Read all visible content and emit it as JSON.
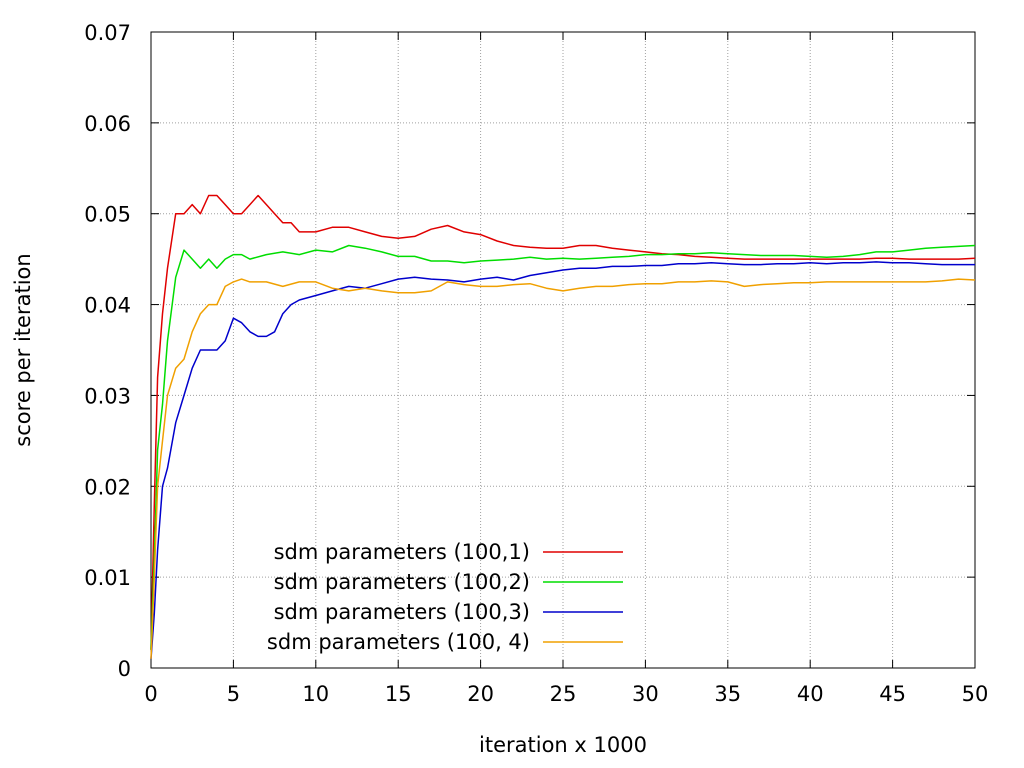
{
  "chart_data": {
    "type": "line",
    "title": "",
    "xlabel": "iteration x 1000",
    "ylabel": "score per iteration",
    "xlim": [
      0,
      50
    ],
    "ylim": [
      0,
      0.07
    ],
    "x_ticks": [
      "0",
      "5",
      "10",
      "15",
      "20",
      "25",
      "30",
      "35",
      "40",
      "45",
      "50"
    ],
    "y_ticks": [
      "0",
      "0.01",
      "0.02",
      "0.03",
      "0.04",
      "0.05",
      "0.06",
      "0.07"
    ],
    "grid": true,
    "legend_position": "bottom-left",
    "series": [
      {
        "name": "sdm parameters (100,1)",
        "color": "#e00000",
        "x": [
          0,
          0.2,
          0.4,
          0.7,
          1,
          1.5,
          2,
          2.5,
          3,
          3.5,
          4,
          4.5,
          5,
          5.5,
          6,
          6.5,
          7,
          7.5,
          8,
          8.5,
          9,
          10,
          11,
          12,
          13,
          14,
          15,
          16,
          17,
          18,
          19,
          20,
          21,
          22,
          23,
          24,
          25,
          26,
          27,
          28,
          29,
          30,
          31,
          32,
          33,
          34,
          35,
          36,
          37,
          38,
          39,
          40,
          41,
          42,
          43,
          44,
          45,
          46,
          47,
          48,
          49,
          50
        ],
        "y": [
          0.002,
          0.018,
          0.032,
          0.039,
          0.044,
          0.05,
          0.05,
          0.051,
          0.05,
          0.052,
          0.052,
          0.051,
          0.05,
          0.05,
          0.051,
          0.052,
          0.051,
          0.05,
          0.049,
          0.049,
          0.048,
          0.048,
          0.0485,
          0.0485,
          0.048,
          0.0475,
          0.0473,
          0.0475,
          0.0483,
          0.0487,
          0.048,
          0.0477,
          0.047,
          0.0465,
          0.0463,
          0.0462,
          0.0462,
          0.0465,
          0.0465,
          0.0462,
          0.046,
          0.0458,
          0.0456,
          0.0455,
          0.0453,
          0.0452,
          0.0451,
          0.045,
          0.045,
          0.045,
          0.045,
          0.045,
          0.045,
          0.045,
          0.045,
          0.0451,
          0.0451,
          0.045,
          0.045,
          0.045,
          0.045,
          0.0451
        ]
      },
      {
        "name": "sdm parameters (100,2)",
        "color": "#00dd00",
        "x": [
          0,
          0.2,
          0.4,
          0.7,
          1,
          1.5,
          2,
          2.5,
          3,
          3.5,
          4,
          4.5,
          5,
          5.5,
          6,
          7,
          8,
          9,
          10,
          11,
          12,
          13,
          14,
          15,
          16,
          17,
          18,
          19,
          20,
          21,
          22,
          23,
          24,
          25,
          26,
          27,
          28,
          29,
          30,
          31,
          32,
          33,
          34,
          35,
          36,
          37,
          38,
          39,
          40,
          41,
          42,
          43,
          44,
          45,
          46,
          47,
          48,
          49,
          50
        ],
        "y": [
          0.002,
          0.012,
          0.024,
          0.029,
          0.036,
          0.043,
          0.046,
          0.045,
          0.044,
          0.045,
          0.044,
          0.045,
          0.0455,
          0.0455,
          0.045,
          0.0455,
          0.0458,
          0.0455,
          0.046,
          0.0458,
          0.0465,
          0.0462,
          0.0458,
          0.0453,
          0.0453,
          0.0448,
          0.0448,
          0.0446,
          0.0448,
          0.0449,
          0.045,
          0.0452,
          0.045,
          0.0451,
          0.045,
          0.0451,
          0.0452,
          0.0453,
          0.0455,
          0.0455,
          0.0456,
          0.0456,
          0.0457,
          0.0456,
          0.0455,
          0.0454,
          0.0454,
          0.0454,
          0.0453,
          0.0452,
          0.0453,
          0.0455,
          0.0458,
          0.0458,
          0.046,
          0.0462,
          0.0463,
          0.0464,
          0.0465
        ]
      },
      {
        "name": "sdm parameters (100,3)",
        "color": "#0000cc",
        "x": [
          0,
          0.2,
          0.4,
          0.7,
          1,
          1.5,
          2,
          2.5,
          3,
          3.5,
          4,
          4.5,
          5,
          5.5,
          6,
          6.5,
          7,
          7.5,
          8,
          8.5,
          9,
          10,
          11,
          12,
          13,
          14,
          15,
          16,
          17,
          18,
          19,
          20,
          21,
          22,
          23,
          24,
          25,
          26,
          27,
          28,
          29,
          30,
          31,
          32,
          33,
          34,
          35,
          36,
          37,
          38,
          39,
          40,
          41,
          42,
          43,
          44,
          45,
          46,
          47,
          48,
          49,
          50
        ],
        "y": [
          0.001,
          0.006,
          0.013,
          0.02,
          0.022,
          0.027,
          0.03,
          0.033,
          0.035,
          0.035,
          0.035,
          0.036,
          0.0385,
          0.038,
          0.037,
          0.0365,
          0.0365,
          0.037,
          0.039,
          0.04,
          0.0405,
          0.041,
          0.0415,
          0.042,
          0.0418,
          0.0423,
          0.0428,
          0.043,
          0.0428,
          0.0427,
          0.0425,
          0.0428,
          0.043,
          0.0427,
          0.0432,
          0.0435,
          0.0438,
          0.044,
          0.044,
          0.0442,
          0.0442,
          0.0443,
          0.0443,
          0.0445,
          0.0445,
          0.0446,
          0.0445,
          0.0444,
          0.0444,
          0.0445,
          0.0445,
          0.0446,
          0.0445,
          0.0446,
          0.0446,
          0.0447,
          0.0446,
          0.0446,
          0.0445,
          0.0444,
          0.0444,
          0.0444
        ]
      },
      {
        "name": "sdm parameters (100, 4)",
        "color": "#f0a000",
        "x": [
          0,
          0.2,
          0.4,
          0.7,
          1,
          1.5,
          2,
          2.5,
          3,
          3.5,
          4,
          4.5,
          5,
          5.5,
          6,
          7,
          8,
          9,
          10,
          11,
          12,
          13,
          14,
          15,
          16,
          17,
          18,
          19,
          20,
          21,
          22,
          23,
          24,
          25,
          26,
          27,
          28,
          29,
          30,
          31,
          32,
          33,
          34,
          35,
          36,
          37,
          38,
          39,
          40,
          41,
          42,
          43,
          44,
          45,
          46,
          47,
          48,
          49,
          50
        ],
        "y": [
          0.001,
          0.01,
          0.02,
          0.025,
          0.03,
          0.033,
          0.034,
          0.037,
          0.039,
          0.04,
          0.04,
          0.042,
          0.0425,
          0.0428,
          0.0425,
          0.0425,
          0.042,
          0.0425,
          0.0425,
          0.0418,
          0.0415,
          0.0418,
          0.0415,
          0.0413,
          0.0413,
          0.0415,
          0.0425,
          0.0422,
          0.042,
          0.042,
          0.0422,
          0.0423,
          0.0418,
          0.0415,
          0.0418,
          0.042,
          0.042,
          0.0422,
          0.0423,
          0.0423,
          0.0425,
          0.0425,
          0.0426,
          0.0425,
          0.042,
          0.0422,
          0.0423,
          0.0424,
          0.0424,
          0.0425,
          0.0425,
          0.0425,
          0.0425,
          0.0425,
          0.0425,
          0.0425,
          0.0426,
          0.0428,
          0.0427
        ]
      }
    ]
  }
}
